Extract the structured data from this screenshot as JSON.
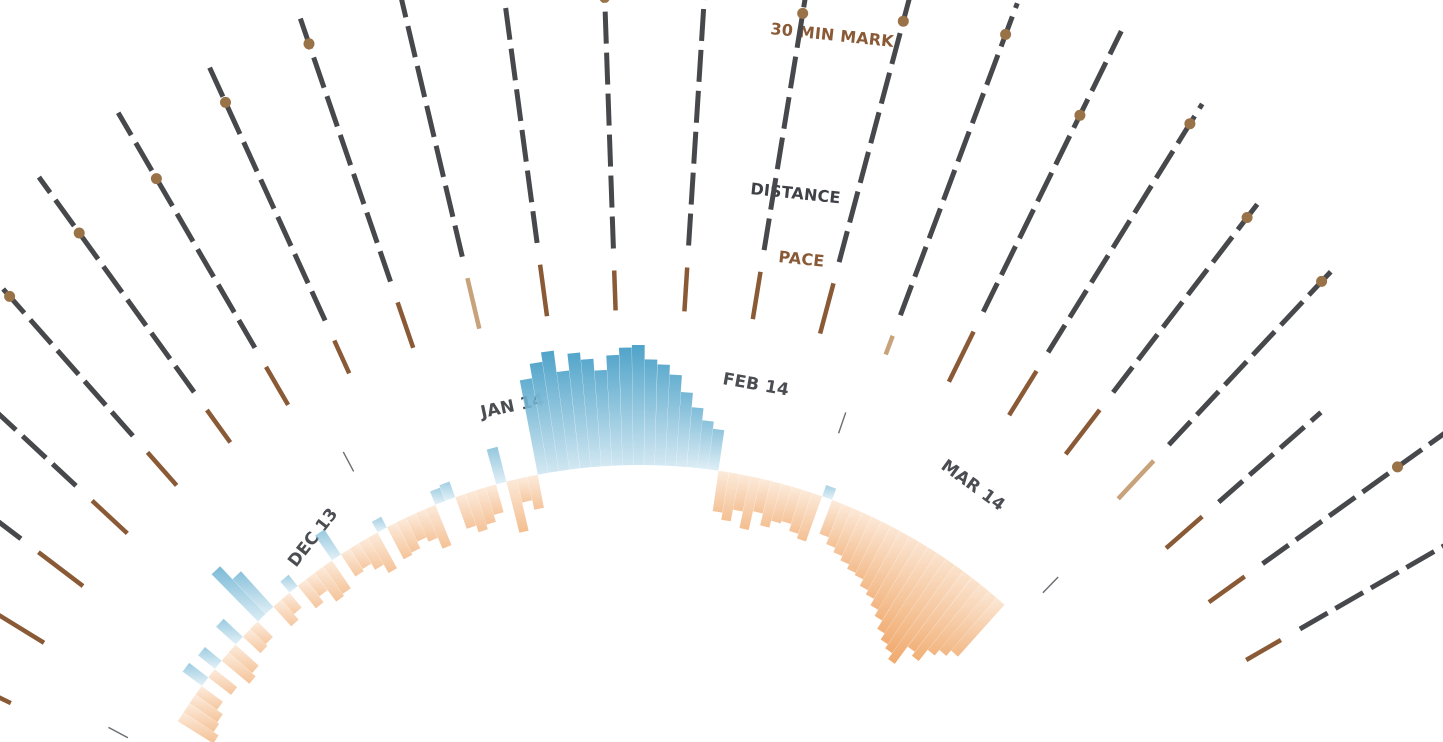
{
  "chart_data": {
    "type": "radial",
    "legend": {
      "thirty_min_mark": "30 MIN MARK",
      "distance": "DISTANCE",
      "pace": "PACE"
    },
    "month_labels": [
      "DEC 13",
      "JAN 14",
      "FEB 14",
      "MAR 14"
    ],
    "colors": {
      "distance": "#46484c",
      "pace": "#8a5a36",
      "pace_light": "#c8a27a",
      "mark": "#9a7248",
      "warm": "#f0a86a",
      "cool": "#4fa3c9"
    },
    "runs": [
      {
        "distance": 0.54,
        "pace": 0.22,
        "mark": 0.98,
        "pace_shade": 0
      },
      {
        "distance": 0.72,
        "pace": 0.3,
        "mark": 0.8,
        "pace_shade": 0
      },
      {
        "distance": 0.7,
        "pace": 0.28,
        "mark": 0.82,
        "pace_shade": 0
      },
      {
        "distance": 0.66,
        "pace": 0.24,
        "mark": 0.8,
        "pace_shade": 0
      },
      {
        "distance": 0.74,
        "pace": 0.22,
        "mark": 0.74,
        "pace_shade": 0
      },
      {
        "distance": 0.78,
        "pace": 0.2,
        "mark": 0.74,
        "pace_shade": 0
      },
      {
        "distance": 0.8,
        "pace": 0.22,
        "mark": 0.72,
        "pace_shade": 0
      },
      {
        "distance": 0.82,
        "pace": 0.18,
        "mark": 0.86,
        "pace_shade": 0
      },
      {
        "distance": 0.84,
        "pace": 0.24,
        "mark": 0.88,
        "pace_shade": 0
      },
      {
        "distance": 0.9,
        "pace": 0.26,
        "mark": 0.92,
        "pace_shade": 1
      },
      {
        "distance": 0.9,
        "pace": 0.26,
        "mark": 0.9,
        "pace_shade": 0
      },
      {
        "distance": 0.88,
        "pace": 0.2,
        "mark": 0.84,
        "pace_shade": 0
      },
      {
        "distance": 0.86,
        "pace": 0.22,
        "mark": 0.88,
        "pace_shade": 0
      },
      {
        "distance": 0.82,
        "pace": 0.24,
        "mark": 0.86,
        "pace_shade": 0
      },
      {
        "distance": 0.94,
        "pace": 0.26,
        "mark": 0.78,
        "pace_shade": 0
      },
      {
        "distance": 0.98,
        "pace": 0.1,
        "mark": 0.9,
        "pace_shade": 1
      },
      {
        "distance": 0.92,
        "pace": 0.28,
        "mark": 0.7,
        "pace_shade": 0
      },
      {
        "distance": 0.86,
        "pace": 0.26,
        "mark": 0.92,
        "pace_shade": 0
      },
      {
        "distance": 0.72,
        "pace": 0.28,
        "mark": 0.9,
        "pace_shade": 0
      },
      {
        "distance": 0.7,
        "pace": 0.26,
        "mark": 0.94,
        "pace_shade": 1
      },
      {
        "distance": 0.4,
        "pace": 0.24,
        "mark": 0,
        "pace_shade": 0
      },
      {
        "distance": 0.66,
        "pace": 0.22,
        "mark": 0.74,
        "pace_shade": 0
      },
      {
        "distance": 0.8,
        "pace": 0.2,
        "mark": 0.86,
        "pace_shade": 0
      }
    ],
    "daily_values": [
      0.35,
      0.3,
      0.28,
      0.22,
      -0.2,
      0.24,
      -0.18,
      0.3,
      0.26,
      -0.22,
      0.2,
      0.18,
      -0.55,
      -0.4,
      0.22,
      0.16,
      -0.12,
      0.24,
      0.18,
      0.3,
      0.28,
      -0.25,
      0.22,
      0.2,
      0.26,
      0.34,
      -0.1,
      0.3,
      0.28,
      0.22,
      0.26,
      0.36,
      -0.12,
      -0.14,
      0.28,
      0.34,
      0.3,
      0.24,
      -0.3,
      0.44,
      0.2,
      0.28,
      -0.8,
      -0.92,
      -1.0,
      -0.82,
      -0.96,
      -0.9,
      -0.8,
      -0.92,
      -0.98,
      -1.0,
      -0.88,
      -0.84,
      -0.76,
      -0.62,
      -0.5,
      -0.4,
      -0.34,
      0.34,
      0.4,
      0.3,
      0.44,
      0.28,
      0.38,
      0.32,
      0.3,
      0.36,
      0.4,
      -0.1,
      0.3,
      0.36,
      0.4,
      0.44,
      0.48,
      0.5,
      0.56,
      0.6,
      0.66,
      0.72,
      0.8,
      0.86,
      0.9,
      0.96,
      0.78,
      0.82,
      0.7,
      0.64,
      0.58
    ]
  }
}
